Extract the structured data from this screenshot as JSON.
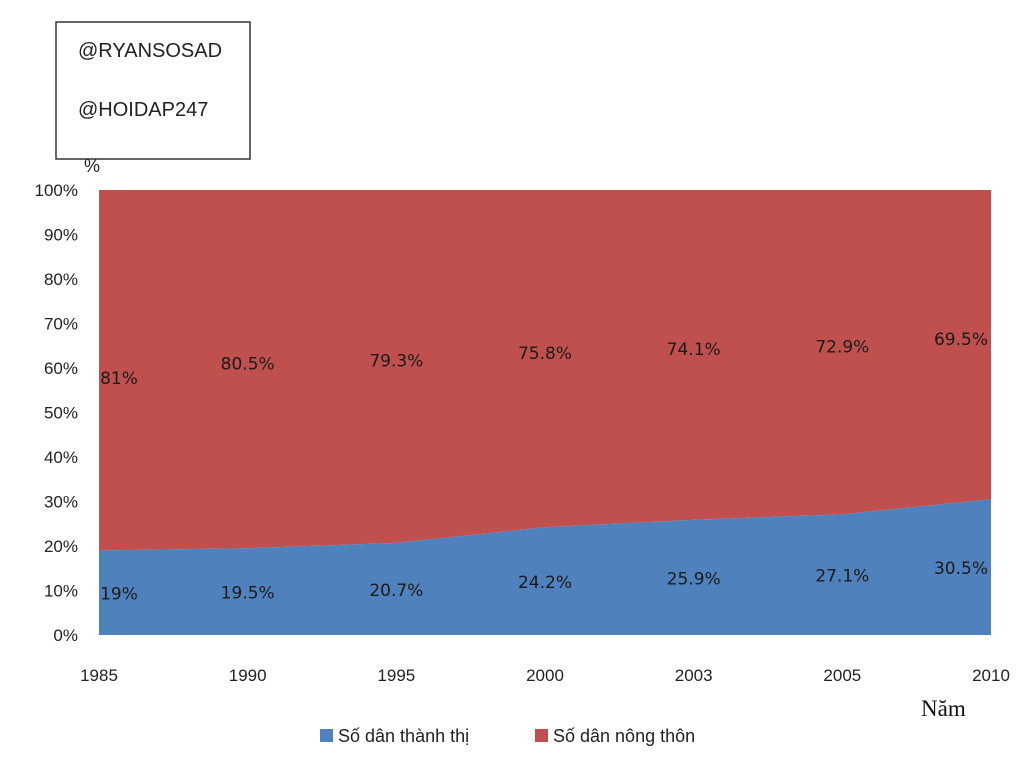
{
  "watermark": {
    "lines": [
      "@RYANSOSAD",
      "@HOIDAP247"
    ]
  },
  "chart_data": {
    "type": "area",
    "stacked": "percent",
    "categories": [
      "1985",
      "1990",
      "1995",
      "2000",
      "2003",
      "2005",
      "2010"
    ],
    "series": [
      {
        "name": "Số dân thành thị",
        "values": [
          19,
          19.5,
          20.7,
          24.2,
          25.9,
          27.1,
          30.5
        ],
        "labels": [
          "19%",
          "19.5%",
          "20.7%",
          "24.2%",
          "25.9%",
          "27.1%",
          "30.5%"
        ],
        "color": "#4f81bd"
      },
      {
        "name": "Số dân nông thôn",
        "values": [
          81,
          80.5,
          79.3,
          75.8,
          74.1,
          72.9,
          69.5
        ],
        "labels": [
          "81%",
          "80.5%",
          "79.3%",
          "75.8%",
          "74.1%",
          "72.9%",
          "69.5%"
        ],
        "color": "#c0504d"
      }
    ],
    "ylabel": "%",
    "xlabel": "Năm",
    "ylim": [
      0,
      100
    ],
    "yticks": [
      "0%",
      "10%",
      "20%",
      "30%",
      "40%",
      "50%",
      "60%",
      "70%",
      "80%",
      "90%",
      "100%"
    ],
    "legend_position": "bottom",
    "grid": false
  }
}
